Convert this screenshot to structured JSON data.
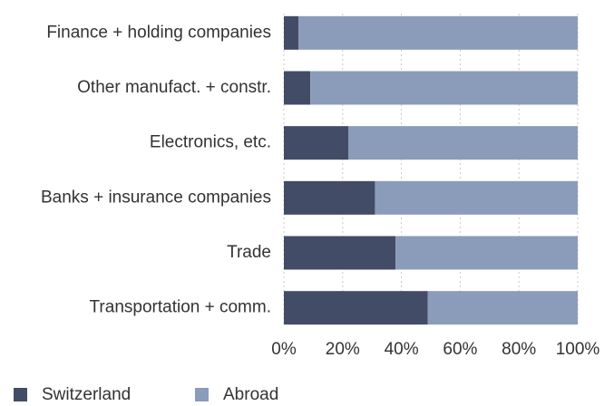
{
  "chart_data": {
    "type": "bar",
    "orientation": "horizontal",
    "stacked": true,
    "categories": [
      "Finance + holding companies",
      "Other manufact. + constr.",
      "Electronics, etc.",
      "Banks + insurance companies",
      "Trade",
      "Transportation + comm."
    ],
    "series": [
      {
        "name": "Switzerland",
        "color": "#434c66",
        "values": [
          5,
          9,
          22,
          31,
          38,
          49
        ]
      },
      {
        "name": "Abroad",
        "color": "#8a9cba",
        "values": [
          95,
          91,
          78,
          69,
          62,
          51
        ]
      }
    ],
    "xlim": [
      0,
      100
    ],
    "xticks": [
      {
        "value": 0,
        "label": "0%"
      },
      {
        "value": 20,
        "label": "20%"
      },
      {
        "value": 40,
        "label": "40%"
      },
      {
        "value": 60,
        "label": "60%"
      },
      {
        "value": 80,
        "label": "80%"
      },
      {
        "value": 100,
        "label": "100%"
      }
    ],
    "grid": true,
    "legend": "bottom-left"
  }
}
